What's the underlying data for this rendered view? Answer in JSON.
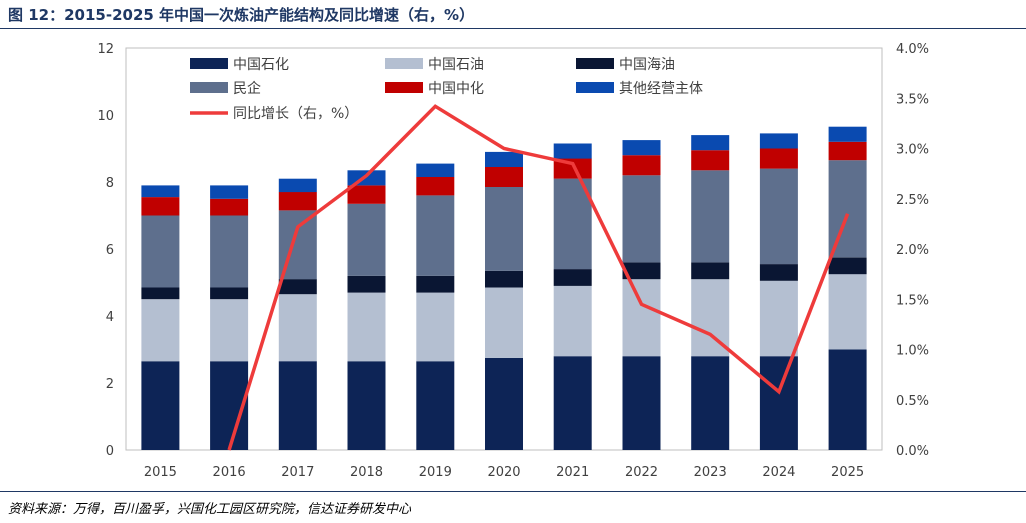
{
  "page": {
    "title": "图 12：2015-2025 年中国一次炼油产能结构及同比增速（右，%）",
    "source": "资料来源：万得，百川盈孚，兴国化工园区研究院，信达证券研发中心"
  },
  "chart_data": {
    "type": "bar",
    "stacked": true,
    "categories": [
      "2015",
      "2016",
      "2017",
      "2018",
      "2019",
      "2020",
      "2021",
      "2022",
      "2023",
      "2024",
      "2025"
    ],
    "series": [
      {
        "name": "中国石化",
        "color": "#0d2456",
        "values": [
          2.65,
          2.65,
          2.65,
          2.65,
          2.65,
          2.75,
          2.8,
          2.8,
          2.8,
          2.8,
          3.0
        ]
      },
      {
        "name": "中国石油",
        "color": "#b4bfd1",
        "values": [
          1.85,
          1.85,
          2.0,
          2.05,
          2.05,
          2.1,
          2.1,
          2.3,
          2.3,
          2.25,
          2.25
        ]
      },
      {
        "name": "中国海油",
        "color": "#0a1633",
        "values": [
          0.35,
          0.35,
          0.45,
          0.5,
          0.5,
          0.5,
          0.5,
          0.5,
          0.5,
          0.5,
          0.5
        ]
      },
      {
        "name": "民企",
        "color": "#5e6f8d",
        "values": [
          2.15,
          2.15,
          2.05,
          2.15,
          2.4,
          2.5,
          2.7,
          2.6,
          2.75,
          2.85,
          2.9
        ]
      },
      {
        "name": "中国中化",
        "color": "#c00000",
        "values": [
          0.55,
          0.5,
          0.55,
          0.55,
          0.55,
          0.6,
          0.6,
          0.6,
          0.6,
          0.6,
          0.55
        ]
      },
      {
        "name": "其他经营主体",
        "color": "#0a4ab0",
        "values": [
          0.35,
          0.4,
          0.4,
          0.45,
          0.4,
          0.45,
          0.45,
          0.45,
          0.45,
          0.45,
          0.45
        ]
      }
    ],
    "line": {
      "name": "同比增长（右，%）",
      "color": "#ee3b3b",
      "x": [
        "2016",
        "2017",
        "2018",
        "2019",
        "2020",
        "2021",
        "2022",
        "2023",
        "2024",
        "2025"
      ],
      "values": [
        0.0,
        2.22,
        2.73,
        3.42,
        3.0,
        2.85,
        1.45,
        1.15,
        0.58,
        2.35
      ]
    },
    "y_left": {
      "min": 0,
      "max": 12,
      "ticks": [
        "0",
        "2",
        "4",
        "6",
        "8",
        "10",
        "12"
      ]
    },
    "y_right": {
      "min": 0,
      "max": 4,
      "ticks": [
        "0.0%",
        "0.5%",
        "1.0%",
        "1.5%",
        "2.0%",
        "2.5%",
        "3.0%",
        "3.5%",
        "4.0%"
      ]
    },
    "legend_position": "top-left",
    "grid": false
  }
}
